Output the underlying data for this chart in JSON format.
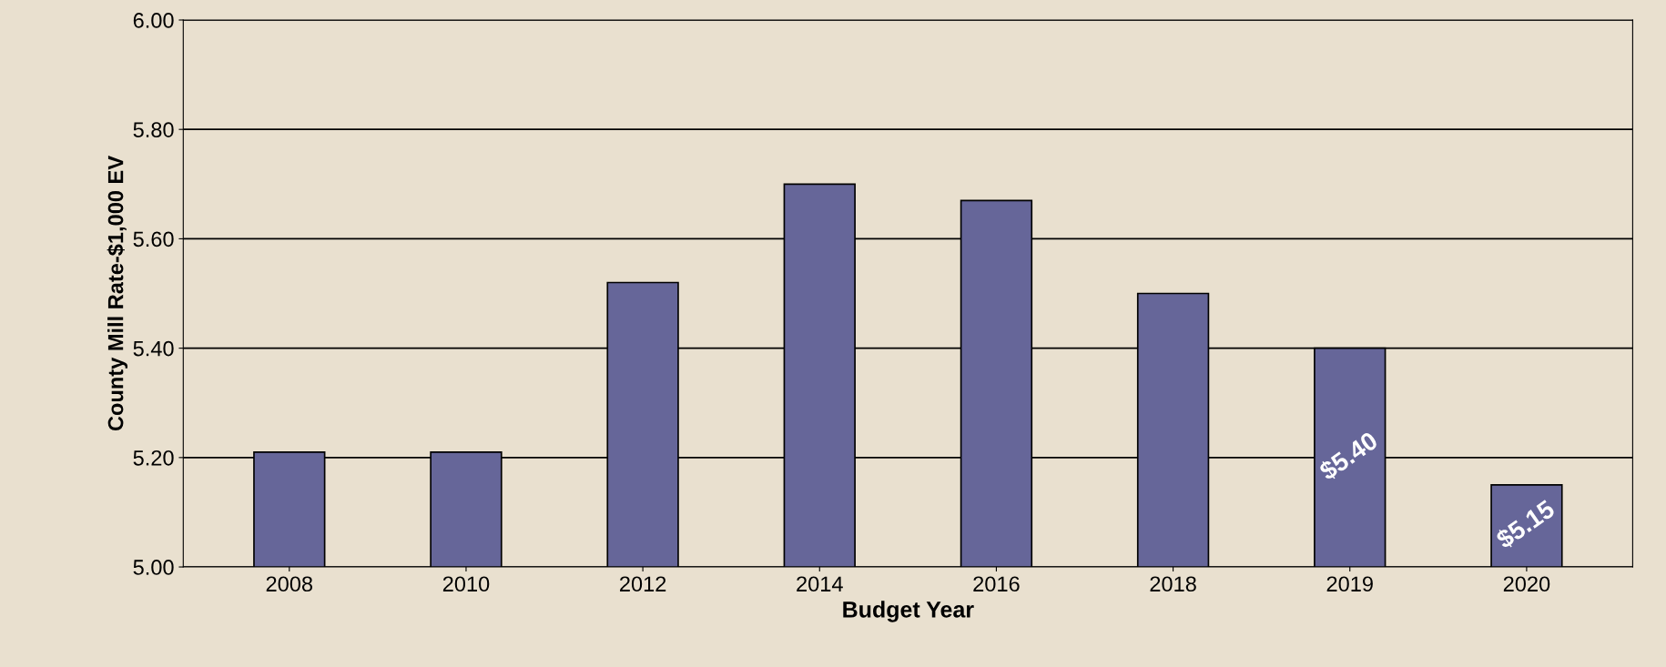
{
  "chart_data": {
    "type": "bar",
    "xlabel": "Budget Year",
    "ylabel": "County Mill Rate-$1,000 EV",
    "categories": [
      "2008",
      "2010",
      "2012",
      "2014",
      "2016",
      "2018",
      "2019",
      "2020"
    ],
    "values": [
      5.21,
      5.21,
      5.52,
      5.7,
      5.67,
      5.5,
      5.4,
      5.15
    ],
    "value_labels": [
      null,
      null,
      null,
      null,
      null,
      null,
      "$5.40",
      "$5.15"
    ],
    "color": "#666699",
    "ylim": [
      5.0,
      6.0
    ],
    "yticks": [
      {
        "value": 5.0,
        "label": "5.00"
      },
      {
        "value": 5.2,
        "label": "5.20"
      },
      {
        "value": 5.4,
        "label": "5.40"
      },
      {
        "value": 5.6,
        "label": "5.60"
      },
      {
        "value": 5.8,
        "label": "5.80"
      },
      {
        "value": 6.0,
        "label": "6.00"
      }
    ],
    "grid": "y",
    "legend": false
  }
}
